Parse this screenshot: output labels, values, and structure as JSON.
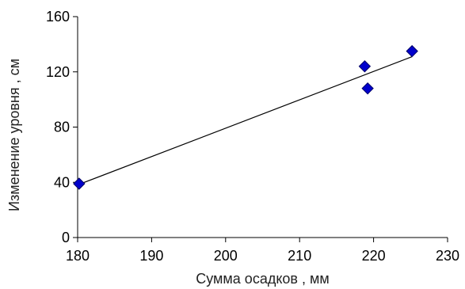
{
  "chart_data": {
    "type": "scatter",
    "title": "",
    "xlabel": "Сумма осадков , мм",
    "ylabel": "Изменение уровня , см",
    "xlim": [
      180,
      230
    ],
    "ylim": [
      0,
      160
    ],
    "xticks": [
      180,
      190,
      200,
      210,
      220,
      230
    ],
    "yticks": [
      0,
      40,
      80,
      120,
      160
    ],
    "grid": false,
    "legend": "none",
    "marker": "diamond",
    "point_color": "#0000cc",
    "points": [
      {
        "x": 180.2,
        "y": 39
      },
      {
        "x": 218.8,
        "y": 124
      },
      {
        "x": 219.2,
        "y": 108
      },
      {
        "x": 225.2,
        "y": 135
      }
    ],
    "trendline": {
      "x": [
        180.2,
        225.2
      ],
      "y": [
        38.5,
        131
      ]
    }
  }
}
